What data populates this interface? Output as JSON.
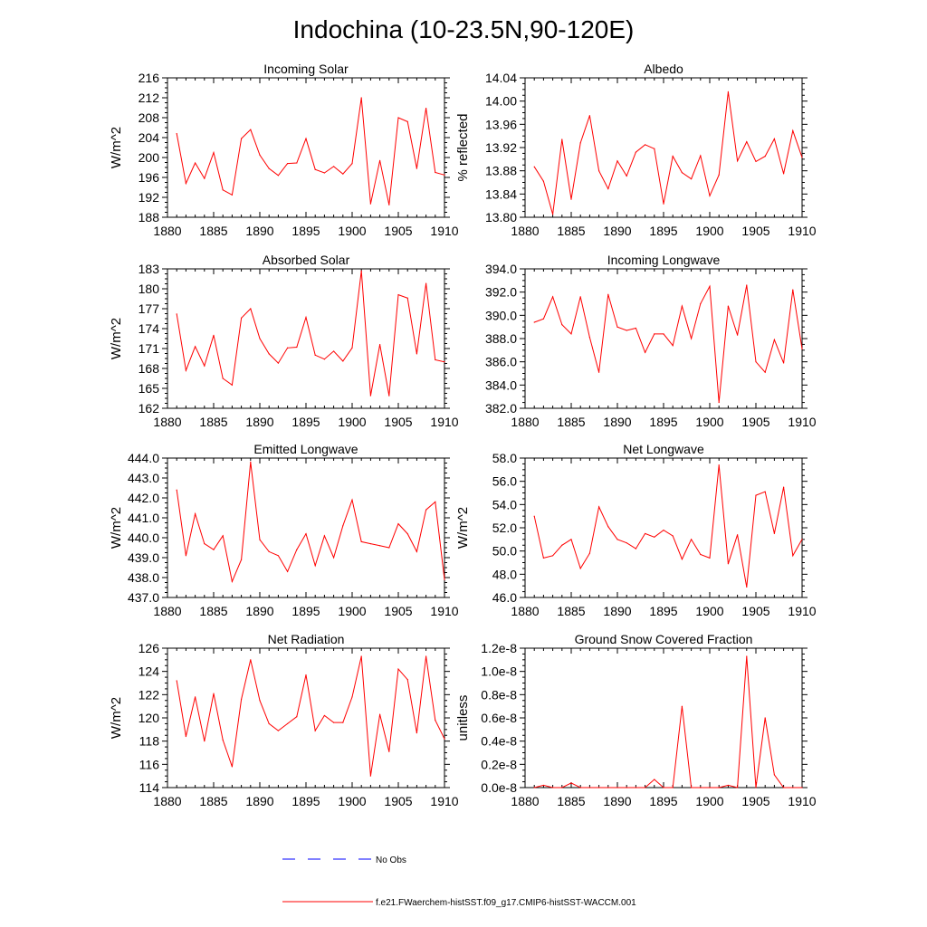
{
  "title": "Indochina (10-23.5N,90-120E)",
  "line_color": "#ff0000",
  "no_obs_color": "#0000ff",
  "legend": {
    "no_obs_label": "No Obs",
    "model_label": "f.e21.FWaerchem-histSST.f09_g17.CMIP6-histSST-WACCM.001"
  },
  "chart_data": [
    {
      "type": "line",
      "title": "Incoming Solar",
      "ylabel": "W/m^2",
      "xlim": [
        1880,
        1910
      ],
      "ylim": [
        188,
        216
      ],
      "yticks": [
        188,
        192,
        196,
        200,
        204,
        208,
        212,
        216
      ],
      "ytick_labels": [
        "188",
        "192",
        "196",
        "200",
        "204",
        "208",
        "212",
        "216"
      ],
      "xticks": [
        1880,
        1885,
        1890,
        1895,
        1900,
        1905,
        1910
      ],
      "x": [
        1881,
        1882,
        1883,
        1884,
        1885,
        1886,
        1887,
        1888,
        1889,
        1890,
        1891,
        1892,
        1893,
        1894,
        1895,
        1896,
        1897,
        1898,
        1899,
        1900,
        1901,
        1902,
        1903,
        1904,
        1905,
        1906,
        1907,
        1908,
        1909,
        1910
      ],
      "values": [
        204.8,
        194.8,
        198.9,
        195.8,
        201.0,
        193.5,
        192.5,
        203.8,
        205.6,
        200.5,
        197.8,
        196.4,
        198.8,
        198.9,
        203.8,
        197.6,
        196.9,
        198.2,
        196.7,
        198.8,
        212.0,
        190.7,
        199.4,
        190.5,
        208.0,
        207.2,
        197.8,
        209.9,
        197.0,
        196.5
      ]
    },
    {
      "type": "line",
      "title": "Albedo",
      "ylabel": "% reflected",
      "xlim": [
        1880,
        1910
      ],
      "ylim": [
        13.8,
        14.04
      ],
      "yticks": [
        13.8,
        13.84,
        13.88,
        13.92,
        13.96,
        14.0,
        14.04
      ],
      "ytick_labels": [
        "13.80",
        "13.84",
        "13.88",
        "13.92",
        "13.96",
        "14.00",
        "14.04"
      ],
      "xticks": [
        1880,
        1885,
        1890,
        1895,
        1900,
        1905,
        1910
      ],
      "x": [
        1881,
        1882,
        1883,
        1884,
        1885,
        1886,
        1887,
        1888,
        1889,
        1890,
        1891,
        1892,
        1893,
        1894,
        1895,
        1896,
        1897,
        1898,
        1899,
        1900,
        1901,
        1902,
        1903,
        1904,
        1905,
        1906,
        1907,
        1908,
        1909,
        1910
      ],
      "values": [
        13.887,
        13.862,
        13.805,
        13.934,
        13.831,
        13.928,
        13.975,
        13.88,
        13.849,
        13.897,
        13.871,
        13.912,
        13.925,
        13.918,
        13.823,
        13.905,
        13.877,
        13.866,
        13.906,
        13.837,
        13.873,
        14.016,
        13.897,
        13.93,
        13.896,
        13.905,
        13.935,
        13.875,
        13.949,
        13.903
      ]
    },
    {
      "type": "line",
      "title": "Absorbed Solar",
      "ylabel": "W/m^2",
      "xlim": [
        1880,
        1910
      ],
      "ylim": [
        162,
        183
      ],
      "yticks": [
        162,
        165,
        168,
        171,
        174,
        177,
        180,
        183
      ],
      "ytick_labels": [
        "162",
        "165",
        "168",
        "171",
        "174",
        "177",
        "180",
        "183"
      ],
      "xticks": [
        1880,
        1885,
        1890,
        1895,
        1900,
        1905,
        1910
      ],
      "x": [
        1881,
        1882,
        1883,
        1884,
        1885,
        1886,
        1887,
        1888,
        1889,
        1890,
        1891,
        1892,
        1893,
        1894,
        1895,
        1896,
        1897,
        1898,
        1899,
        1900,
        1901,
        1902,
        1903,
        1904,
        1905,
        1906,
        1907,
        1908,
        1909,
        1910
      ],
      "values": [
        176.2,
        167.7,
        171.3,
        168.4,
        173.0,
        166.5,
        165.5,
        175.6,
        177.0,
        172.5,
        170.2,
        168.8,
        171.1,
        171.2,
        175.7,
        170.0,
        169.4,
        170.6,
        169.1,
        171.1,
        182.7,
        163.9,
        171.6,
        163.9,
        179.1,
        178.6,
        170.2,
        180.8,
        169.3,
        169.0
      ]
    },
    {
      "type": "line",
      "title": "Incoming Longwave",
      "ylabel": "",
      "xlim": [
        1880,
        1910
      ],
      "ylim": [
        382.0,
        394.0
      ],
      "yticks": [
        382,
        384,
        386,
        388,
        390,
        392,
        394
      ],
      "ytick_labels": [
        "382.0",
        "384.0",
        "386.0",
        "388.0",
        "390.0",
        "392.0",
        "394.0"
      ],
      "xticks": [
        1880,
        1885,
        1890,
        1895,
        1900,
        1905,
        1910
      ],
      "x": [
        1881,
        1882,
        1883,
        1884,
        1885,
        1886,
        1887,
        1888,
        1889,
        1890,
        1891,
        1892,
        1893,
        1894,
        1895,
        1896,
        1897,
        1898,
        1899,
        1900,
        1901,
        1902,
        1903,
        1904,
        1905,
        1906,
        1907,
        1908,
        1909,
        1910
      ],
      "values": [
        389.4,
        389.7,
        391.6,
        389.2,
        388.4,
        391.6,
        388.1,
        385.1,
        391.8,
        389.0,
        388.7,
        388.9,
        386.8,
        388.4,
        388.4,
        387.4,
        390.8,
        388.0,
        391.0,
        392.5,
        382.5,
        390.8,
        388.3,
        392.6,
        386.0,
        385.1,
        387.9,
        385.9,
        392.2,
        387.1
      ]
    },
    {
      "type": "line",
      "title": "Emitted Longwave",
      "ylabel": "W/m^2",
      "xlim": [
        1880,
        1910
      ],
      "ylim": [
        437.0,
        444.0
      ],
      "yticks": [
        437,
        438,
        439,
        440,
        441,
        442,
        443,
        444
      ],
      "ytick_labels": [
        "437.0",
        "438.0",
        "439.0",
        "440.0",
        "441.0",
        "442.0",
        "443.0",
        "444.0"
      ],
      "xticks": [
        1880,
        1885,
        1890,
        1895,
        1900,
        1905,
        1910
      ],
      "x": [
        1881,
        1882,
        1883,
        1884,
        1885,
        1886,
        1887,
        1888,
        1889,
        1890,
        1891,
        1892,
        1893,
        1894,
        1895,
        1896,
        1897,
        1898,
        1899,
        1900,
        1901,
        1902,
        1903,
        1904,
        1905,
        1906,
        1907,
        1908,
        1909,
        1910
      ],
      "values": [
        442.4,
        439.1,
        441.2,
        439.7,
        439.4,
        440.1,
        437.8,
        438.9,
        443.8,
        439.9,
        439.3,
        439.1,
        438.3,
        439.4,
        440.2,
        438.6,
        440.1,
        439.0,
        440.6,
        441.9,
        439.8,
        439.7,
        439.6,
        439.5,
        440.7,
        440.2,
        439.3,
        441.4,
        441.8,
        437.9
      ]
    },
    {
      "type": "line",
      "title": "Net Longwave",
      "ylabel": "W/m^2",
      "xlim": [
        1880,
        1910
      ],
      "ylim": [
        46.0,
        58.0
      ],
      "yticks": [
        46,
        48,
        50,
        52,
        54,
        56,
        58
      ],
      "ytick_labels": [
        "46.0",
        "48.0",
        "50.0",
        "52.0",
        "54.0",
        "56.0",
        "58.0"
      ],
      "xticks": [
        1880,
        1885,
        1890,
        1895,
        1900,
        1905,
        1910
      ],
      "x": [
        1881,
        1882,
        1883,
        1884,
        1885,
        1886,
        1887,
        1888,
        1889,
        1890,
        1891,
        1892,
        1893,
        1894,
        1895,
        1896,
        1897,
        1898,
        1899,
        1900,
        1901,
        1902,
        1903,
        1904,
        1905,
        1906,
        1907,
        1908,
        1909,
        1910
      ],
      "values": [
        53.0,
        49.4,
        49.6,
        50.5,
        51.0,
        48.5,
        49.8,
        53.8,
        52.1,
        51.0,
        50.7,
        50.2,
        51.5,
        51.2,
        51.8,
        51.3,
        49.3,
        51.0,
        49.7,
        49.4,
        57.4,
        48.9,
        51.4,
        46.9,
        54.8,
        55.1,
        51.5,
        55.5,
        49.6,
        51.0
      ]
    },
    {
      "type": "line",
      "title": "Net Radiation",
      "ylabel": "W/m^2",
      "xlim": [
        1880,
        1910
      ],
      "ylim": [
        114,
        126
      ],
      "yticks": [
        114,
        116,
        118,
        120,
        122,
        124,
        126
      ],
      "ytick_labels": [
        "114",
        "116",
        "118",
        "120",
        "122",
        "124",
        "126"
      ],
      "xticks": [
        1880,
        1885,
        1890,
        1895,
        1900,
        1905,
        1910
      ],
      "x": [
        1881,
        1882,
        1883,
        1884,
        1885,
        1886,
        1887,
        1888,
        1889,
        1890,
        1891,
        1892,
        1893,
        1894,
        1895,
        1896,
        1897,
        1898,
        1899,
        1900,
        1901,
        1902,
        1903,
        1904,
        1905,
        1906,
        1907,
        1908,
        1909,
        1910
      ],
      "values": [
        123.2,
        118.4,
        121.8,
        118.0,
        122.1,
        118.1,
        115.8,
        121.6,
        125.0,
        121.5,
        119.5,
        118.9,
        119.5,
        120.1,
        123.7,
        118.9,
        120.2,
        119.6,
        119.6,
        121.8,
        125.3,
        115.0,
        120.3,
        117.1,
        124.2,
        123.3,
        118.7,
        125.3,
        119.8,
        118.2
      ]
    },
    {
      "type": "line",
      "title": "Ground Snow Covered Fraction",
      "ylabel": "unitless",
      "xlim": [
        1880,
        1910
      ],
      "ylim": [
        0,
        1.2e-08
      ],
      "yticks": [
        0,
        2e-09,
        4e-09,
        6e-09,
        8e-09,
        1e-08,
        1.2e-08
      ],
      "ytick_labels": [
        "0.0e-8",
        "0.2e-8",
        "0.4e-8",
        "0.6e-8",
        "0.8e-8",
        "1.0e-8",
        "1.2e-8"
      ],
      "xticks": [
        1880,
        1885,
        1890,
        1895,
        1900,
        1905,
        1910
      ],
      "x": [
        1881,
        1882,
        1883,
        1884,
        1885,
        1886,
        1887,
        1888,
        1889,
        1890,
        1891,
        1892,
        1893,
        1894,
        1895,
        1896,
        1897,
        1898,
        1899,
        1900,
        1901,
        1902,
        1903,
        1904,
        1905,
        1906,
        1907,
        1908,
        1909,
        1910
      ],
      "values": [
        0,
        2e-10,
        0,
        0,
        4e-10,
        0,
        0,
        0,
        0,
        0,
        0,
        0,
        0,
        7e-10,
        0,
        0,
        7e-09,
        0,
        0,
        0,
        0,
        2e-10,
        0,
        1.13e-08,
        0,
        6e-09,
        1.1e-09,
        0,
        0,
        0
      ]
    }
  ]
}
